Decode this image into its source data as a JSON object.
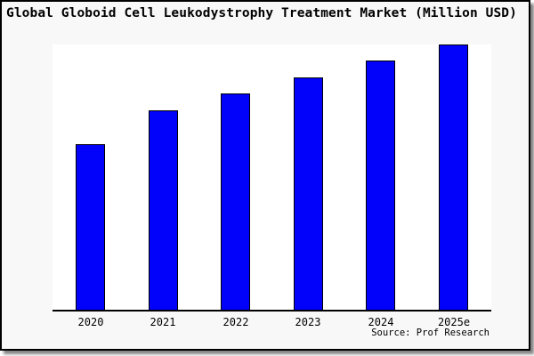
{
  "chart_data": {
    "type": "bar",
    "title": "Global Globoid Cell Leukodystrophy Treatment Market (Million USD)",
    "categories": [
      "2020",
      "2021",
      "2022",
      "2023",
      "2024",
      "2025e"
    ],
    "values_relative": [
      62.4,
      75.2,
      81.5,
      87.6,
      94.0,
      100
    ],
    "value_note": "no y-axis tick labels shown in chart; values are percent of tallest bar",
    "xlabel": "",
    "ylabel": "",
    "grid": false,
    "legend": false,
    "bar_color": "#0202fa",
    "bar_border_color": "#000000",
    "plot_background": "#ffffff",
    "canvas_background": "#f8f8f8",
    "source_label": "Source: Prof Research"
  }
}
